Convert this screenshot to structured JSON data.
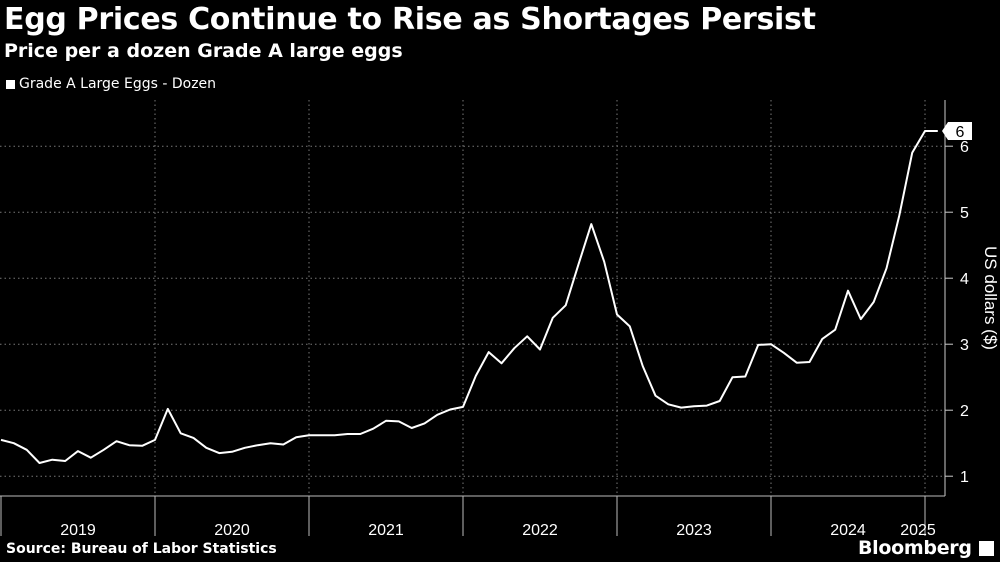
{
  "chart_data": {
    "type": "line",
    "title": "Egg Prices Continue to Rise as Shortages Persist",
    "subtitle": "Price per a dozen Grade A large eggs",
    "ylabel": "US dollars ($)",
    "xlabel": "",
    "ylim": [
      0.7,
      6.7
    ],
    "yticks": [
      1,
      2,
      3,
      4,
      5,
      6
    ],
    "x_tick_labels": [
      "2019",
      "2020",
      "2021",
      "2022",
      "2023",
      "2024",
      "2025"
    ],
    "grid": true,
    "legend_position": "top-left",
    "last_value_label": "6",
    "series": [
      {
        "name": "Grade A Large Eggs - Dozen",
        "color": "#ffffff",
        "x": [
          "2019-01",
          "2019-02",
          "2019-03",
          "2019-04",
          "2019-05",
          "2019-06",
          "2019-07",
          "2019-08",
          "2019-09",
          "2019-10",
          "2019-11",
          "2019-12",
          "2020-01",
          "2020-02",
          "2020-03",
          "2020-04",
          "2020-05",
          "2020-06",
          "2020-07",
          "2020-08",
          "2020-09",
          "2020-10",
          "2020-11",
          "2020-12",
          "2021-01",
          "2021-02",
          "2021-03",
          "2021-04",
          "2021-05",
          "2021-06",
          "2021-07",
          "2021-08",
          "2021-09",
          "2021-10",
          "2021-11",
          "2021-12",
          "2022-01",
          "2022-02",
          "2022-03",
          "2022-04",
          "2022-05",
          "2022-06",
          "2022-07",
          "2022-08",
          "2022-09",
          "2022-10",
          "2022-11",
          "2022-12",
          "2023-01",
          "2023-02",
          "2023-03",
          "2023-04",
          "2023-05",
          "2023-06",
          "2023-07",
          "2023-08",
          "2023-09",
          "2023-10",
          "2023-11",
          "2023-12",
          "2024-01",
          "2024-02",
          "2024-03",
          "2024-04",
          "2024-05",
          "2024-06",
          "2024-07",
          "2024-08",
          "2024-09",
          "2024-10",
          "2024-11",
          "2024-12",
          "2025-01",
          "2025-02"
        ],
        "values": [
          1.55,
          1.5,
          1.4,
          1.2,
          1.25,
          1.23,
          1.38,
          1.28,
          1.4,
          1.53,
          1.47,
          1.46,
          1.55,
          2.02,
          1.65,
          1.58,
          1.43,
          1.35,
          1.37,
          1.43,
          1.47,
          1.5,
          1.48,
          1.59,
          1.62,
          1.62,
          1.62,
          1.64,
          1.64,
          1.72,
          1.84,
          1.83,
          1.73,
          1.8,
          1.93,
          2.01,
          2.05,
          2.52,
          2.88,
          2.71,
          2.94,
          3.12,
          2.92,
          3.4,
          3.59,
          4.21,
          4.82,
          4.25,
          3.45,
          3.27,
          2.67,
          2.22,
          2.09,
          2.04,
          2.06,
          2.07,
          2.14,
          2.5,
          2.51,
          2.99,
          3.0,
          2.87,
          2.72,
          2.73,
          3.08,
          3.22,
          3.81,
          3.38,
          3.64,
          4.15,
          4.95,
          5.9,
          6.23,
          6.23
        ]
      }
    ]
  },
  "footer": {
    "source": "Source: Bureau of Labor Statistics",
    "brand": "Bloomberg"
  }
}
